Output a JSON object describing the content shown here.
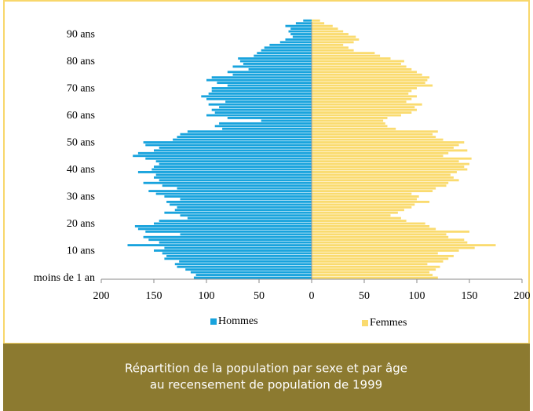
{
  "chart_data": {
    "type": "pyramid",
    "title": [
      "Répartition de la population par sexe et par âge",
      "au recensement de population de 1999"
    ],
    "categories": [
      "moins de 1 an",
      null,
      null,
      null,
      null,
      null,
      null,
      null,
      null,
      null,
      "10 ans",
      null,
      null,
      null,
      null,
      null,
      null,
      null,
      null,
      null,
      "20 ans",
      null,
      null,
      null,
      null,
      null,
      null,
      null,
      null,
      null,
      "30 ans",
      null,
      null,
      null,
      null,
      null,
      null,
      null,
      null,
      null,
      "40 ans",
      null,
      null,
      null,
      null,
      null,
      null,
      null,
      null,
      null,
      "50 ans",
      null,
      null,
      null,
      null,
      null,
      null,
      null,
      null,
      null,
      "60 ans",
      null,
      null,
      null,
      null,
      null,
      null,
      null,
      null,
      null,
      "70 ans",
      null,
      null,
      null,
      null,
      null,
      null,
      null,
      null,
      null,
      "80 ans",
      null,
      null,
      null,
      null,
      null,
      null,
      null,
      null,
      null,
      "90 ans",
      null,
      null,
      null,
      null,
      null
    ],
    "series": [
      {
        "name": "Hommes",
        "color": "#18a3dd",
        "values": [
          112,
          110,
          115,
          120,
          128,
          130,
          126,
          140,
          138,
          142,
          150,
          140,
          175,
          145,
          155,
          160,
          125,
          158,
          165,
          168,
          150,
          145,
          118,
          125,
          140,
          130,
          128,
          135,
          138,
          125,
          140,
          148,
          155,
          128,
          142,
          160,
          145,
          150,
          148,
          165,
          152,
          150,
          145,
          148,
          158,
          170,
          165,
          150,
          145,
          158,
          160,
          132,
          128,
          125,
          118,
          85,
          92,
          88,
          48,
          80,
          100,
          92,
          95,
          88,
          98,
          82,
          100,
          105,
          98,
          95,
          95,
          80,
          90,
          100,
          95,
          75,
          80,
          60,
          75,
          65,
          68,
          70,
          55,
          52,
          48,
          45,
          40,
          30,
          25,
          18,
          20,
          22,
          20,
          25,
          15,
          8
        ]
      },
      {
        "name": "Femmes",
        "color": "#fadb6f",
        "values": [
          120,
          115,
          112,
          118,
          122,
          110,
          125,
          130,
          135,
          120,
          140,
          155,
          175,
          148,
          145,
          130,
          128,
          150,
          118,
          112,
          108,
          90,
          85,
          75,
          82,
          88,
          95,
          98,
          112,
          100,
          102,
          95,
          115,
          118,
          128,
          130,
          140,
          135,
          132,
          138,
          148,
          145,
          150,
          140,
          152,
          125,
          130,
          148,
          135,
          140,
          145,
          125,
          118,
          115,
          120,
          80,
          72,
          70,
          68,
          72,
          85,
          95,
          100,
          98,
          105,
          90,
          95,
          100,
          92,
          95,
          100,
          115,
          108,
          110,
          112,
          105,
          100,
          95,
          90,
          85,
          88,
          75,
          65,
          60,
          40,
          35,
          30,
          40,
          45,
          42,
          35,
          30,
          25,
          20,
          12,
          8
        ]
      }
    ],
    "xlim": [
      -200,
      200
    ],
    "xticks": [
      {
        "value": -200,
        "label": "200"
      },
      {
        "value": -150,
        "label": "150"
      },
      {
        "value": -100,
        "label": "100"
      },
      {
        "value": -50,
        "label": "50"
      },
      0,
      50,
      100,
      150,
      200
    ]
  }
}
